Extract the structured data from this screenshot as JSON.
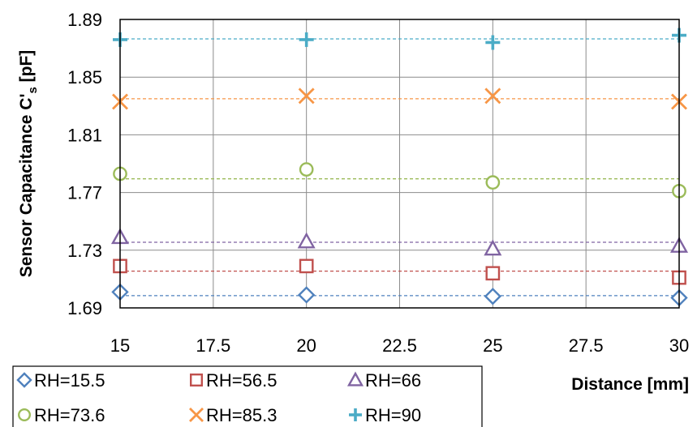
{
  "chart_data": {
    "type": "scatter",
    "xlabel": "Distance [mm]",
    "ylabel_main": "Sensor Capacitance C'",
    "ylabel_sub": "s",
    "ylabel_unit": " [pF]",
    "xlim": [
      15,
      30
    ],
    "ylim": [
      1.69,
      1.89
    ],
    "xticks": [
      "15",
      "17.5",
      "20",
      "22.5",
      "25",
      "27.5",
      "30"
    ],
    "xtick_values": [
      15,
      17.5,
      20,
      22.5,
      25,
      27.5,
      30
    ],
    "yticks": [
      "1.69",
      "1.73",
      "1.77",
      "1.81",
      "1.85",
      "1.89"
    ],
    "ytick_values": [
      1.69,
      1.73,
      1.77,
      1.81,
      1.85,
      1.89
    ],
    "grid": true,
    "legend_position": "bottom-left",
    "series": [
      {
        "name": "RH=15.5",
        "marker": "diamond",
        "color": "#4f81bd",
        "x": [
          15,
          20,
          25,
          30
        ],
        "y": [
          1.701,
          1.699,
          1.698,
          1.697
        ],
        "fit": 1.6985
      },
      {
        "name": "RH=56.5",
        "marker": "square",
        "color": "#c0504d",
        "x": [
          15,
          20,
          25,
          30
        ],
        "y": [
          1.719,
          1.719,
          1.714,
          1.711
        ],
        "fit": 1.7155
      },
      {
        "name": "RH=66",
        "marker": "triangle",
        "color": "#8064a2",
        "x": [
          15,
          20,
          25,
          30
        ],
        "y": [
          1.739,
          1.736,
          1.731,
          1.733
        ],
        "fit": 1.7355
      },
      {
        "name": "RH=73.6",
        "marker": "circle",
        "color": "#9bbb59",
        "x": [
          15,
          20,
          25,
          30
        ],
        "y": [
          1.783,
          1.786,
          1.777,
          1.771
        ],
        "fit": 1.7795
      },
      {
        "name": "RH=85.3",
        "marker": "x",
        "color": "#f79646",
        "x": [
          15,
          20,
          25,
          30
        ],
        "y": [
          1.833,
          1.837,
          1.837,
          1.833
        ],
        "fit": 1.835
      },
      {
        "name": "RH=90",
        "marker": "plus",
        "color": "#4bacc6",
        "x": [
          15,
          20,
          25,
          30
        ],
        "y": [
          1.876,
          1.876,
          1.874,
          1.879
        ],
        "fit": 1.8765
      }
    ]
  }
}
